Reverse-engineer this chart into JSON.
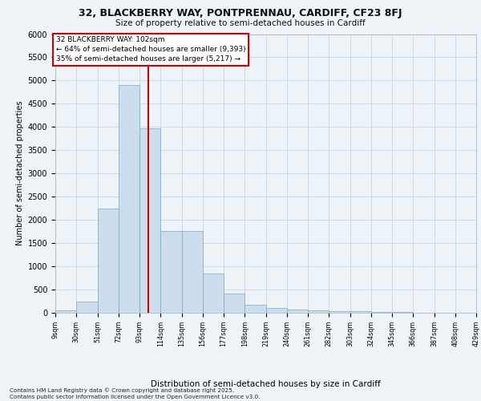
{
  "title_line1": "32, BLACKBERRY WAY, PONTPRENNAU, CARDIFF, CF23 8FJ",
  "title_line2": "Size of property relative to semi-detached houses in Cardiff",
  "xlabel": "Distribution of semi-detached houses by size in Cardiff",
  "ylabel": "Number of semi-detached properties",
  "footer_line1": "Contains HM Land Registry data © Crown copyright and database right 2025.",
  "footer_line2": "Contains public sector information licensed under the Open Government Licence v3.0.",
  "annotation_line1": "32 BLACKBERRY WAY: 102sqm",
  "annotation_line2": "← 64% of semi-detached houses are smaller (9,393)",
  "annotation_line3": "35% of semi-detached houses are larger (5,217) →",
  "property_size": 102,
  "bar_color": "#ccdded",
  "bar_edge_color": "#7aaabb",
  "vline_color": "#cc0000",
  "background_color": "#eef3f8",
  "bin_edges": [
    9,
    30,
    51,
    72,
    93,
    114,
    135,
    156,
    177,
    198,
    219,
    240,
    261,
    282,
    303,
    324,
    345,
    366,
    387,
    408,
    429
  ],
  "bar_values": [
    45,
    240,
    2250,
    4900,
    3970,
    1760,
    1760,
    840,
    415,
    175,
    105,
    65,
    50,
    35,
    28,
    20,
    12,
    8,
    5,
    3
  ],
  "ylim": [
    0,
    6000
  ],
  "yticks": [
    0,
    500,
    1000,
    1500,
    2000,
    2500,
    3000,
    3500,
    4000,
    4500,
    5000,
    5500,
    6000
  ],
  "annotation_box_facecolor": "#ffffff",
  "annotation_box_edgecolor": "#cc0000",
  "grid_color": "#c8d4de"
}
